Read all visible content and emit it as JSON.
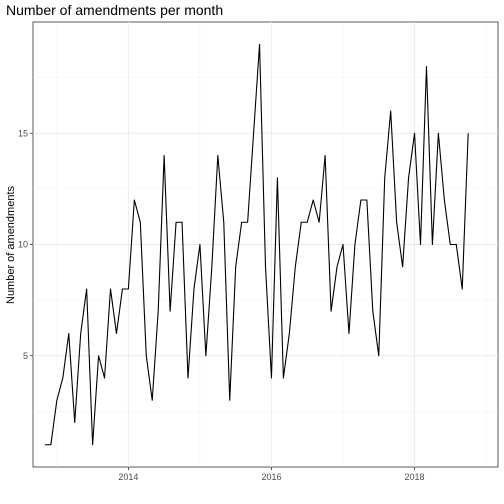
{
  "chart_data": {
    "type": "line",
    "title": "Number of amendments per month",
    "xlabel": "",
    "ylabel": "Number of amendments",
    "x_start": "2012-11",
    "x_end": "2018-12",
    "xlim": [
      "2012-09",
      "2019-03"
    ],
    "ylim": [
      0,
      20
    ],
    "x_ticks": [
      {
        "date": "2014-01",
        "label": "2014"
      },
      {
        "date": "2016-01",
        "label": "2016"
      },
      {
        "date": "2018-01",
        "label": "2018"
      }
    ],
    "y_ticks": [
      5,
      10,
      15
    ],
    "grid": true,
    "series": [
      {
        "color": "#000000",
        "values": [
          1,
          1,
          3,
          4,
          6,
          2,
          6,
          8,
          1,
          5,
          4,
          8,
          6,
          8,
          8,
          12,
          11,
          5,
          3,
          7,
          14,
          7,
          11,
          11,
          4,
          8,
          10,
          5,
          9,
          14,
          11,
          3,
          9,
          11,
          11,
          15,
          19,
          9,
          4,
          13,
          4,
          6,
          9,
          11,
          11,
          12,
          11,
          14,
          7,
          9,
          10,
          6,
          10,
          12,
          12,
          7,
          5,
          13,
          16,
          11,
          9,
          13,
          15,
          10,
          18,
          10,
          15,
          12,
          10,
          10,
          8,
          15
        ]
      }
    ]
  }
}
